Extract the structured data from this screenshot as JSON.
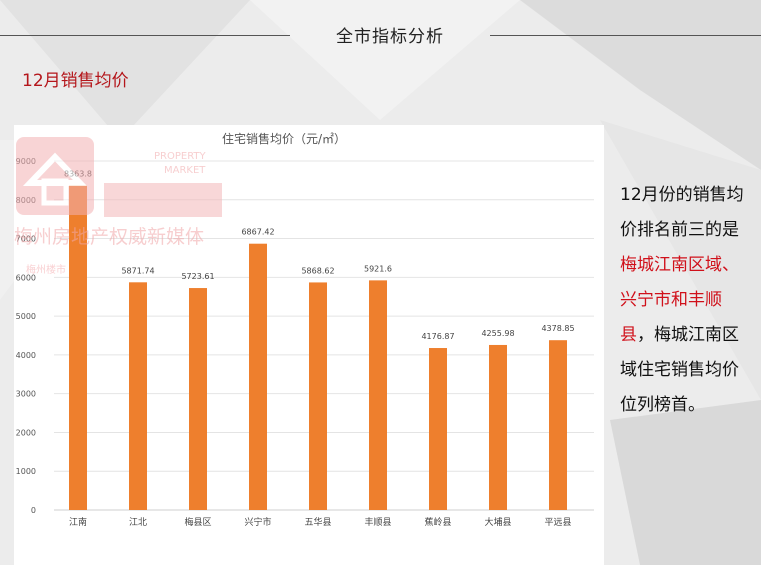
{
  "header": {
    "title": "全市指标分析"
  },
  "section": {
    "subtitle": "12月销售均价"
  },
  "chart_data": {
    "type": "bar",
    "title": "住宅销售均价（元/㎡）",
    "categories": [
      "江南",
      "江北",
      "梅县区",
      "兴宁市",
      "五华县",
      "丰顺县",
      "蕉岭县",
      "大埔县",
      "平远县"
    ],
    "values": [
      8363.8,
      5871.74,
      5723.61,
      6867.42,
      5868.62,
      5921.6,
      4176.87,
      4255.98,
      4378.85
    ],
    "value_labels": [
      "8363.8",
      "5871.74",
      "5723.61",
      "6867.42",
      "5868.62",
      "5921.6",
      "4176.87",
      "4255.98",
      "4378.85"
    ],
    "ylim": [
      0,
      9000
    ],
    "yticks": [
      0,
      1000,
      2000,
      3000,
      4000,
      5000,
      6000,
      7000,
      8000,
      9000
    ],
    "grid": true,
    "bar_color": "#ee7f2d"
  },
  "watermark": {
    "logo_text": "梅州楼市",
    "en_line1": "PROPERTY",
    "en_line2": "MARKET",
    "slogan": "梅州房地产权威新媒体"
  },
  "sidebar_text": {
    "part1": "12月份的销售均价排名前三的是",
    "highlight": "梅城江南区域、兴宁市和丰顺县",
    "part2": "，梅城江南区域住宅销售均价位列榜首。"
  }
}
